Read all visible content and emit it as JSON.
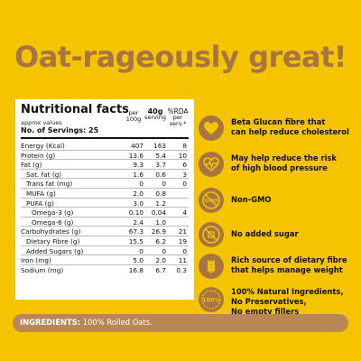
{
  "headline": "Oat-rageously great!",
  "nutrition": {
    "title": "Nutritional facts",
    "subtitle": "approx values",
    "servings": "No. of Servings: 25",
    "col1_head": [
      "per",
      "100g"
    ],
    "col2_head": [
      "40g",
      "serving"
    ],
    "col3_head": [
      "%RDA",
      "per",
      "serv.*"
    ],
    "rows": [
      {
        "label": "Energy (Kcal)",
        "per100": "407",
        "serving": "163",
        "rda": "8"
      },
      {
        "label": "Protein (g)",
        "per100": "13.6",
        "serving": "5.4",
        "rda": "10"
      },
      {
        "label": "Fat (g)",
        "per100": "9.3",
        "serving": "3.7",
        "rda": "6"
      },
      {
        "label": "Sat. fat (g)",
        "per100": "1.6",
        "serving": "0.6",
        "rda": "3"
      },
      {
        "label": "Trans fat (mg)",
        "per100": "0",
        "serving": "0",
        "rda": "0"
      },
      {
        "label": "MUFA (g)",
        "per100": "2.0",
        "serving": "0.8",
        "rda": ""
      },
      {
        "label": "PUFA (g)",
        "per100": "3.0",
        "serving": "1.2",
        "rda": ""
      },
      {
        "label": "Omega-3 (g)",
        "per100": "0.10",
        "serving": "0.04",
        "rda": "4"
      },
      {
        "label": "Omega-6 (g)",
        "per100": "2.4",
        "serving": "1.0",
        "rda": ""
      },
      {
        "label": "Carbohydrates (g)",
        "per100": "67.3",
        "serving": "26.9",
        "rda": "21"
      },
      {
        "label": "Dietary Fibre (g)",
        "per100": "15.5",
        "serving": "6.2",
        "rda": "19"
      },
      {
        "label": "Added Sugars (g)",
        "per100": "0",
        "serving": "0",
        "rda": "0"
      },
      {
        "label": "Iron (mg)",
        "per100": "5.0",
        "serving": "2.0",
        "rda": "11"
      },
      {
        "label": "Sodium (mg)",
        "per100": "16.8",
        "serving": "6.7",
        "rda": "0.3"
      }
    ]
  },
  "features": [
    {
      "icon": "heart-icon",
      "lines": [
        "Beta Glucan fibre that",
        "can help reduce cholesterol"
      ]
    },
    {
      "icon": "heartbeat-icon",
      "lines": [
        "May help reduce the risk",
        "of high blood pressure"
      ]
    },
    {
      "icon": "no-gmo-icon",
      "lines": [
        "Non-GMO"
      ],
      "badge": "GMO"
    },
    {
      "icon": "no-sugar-icon",
      "lines": [
        "No added sugar"
      ]
    },
    {
      "icon": "wheat-icon",
      "lines": [
        "Rich source of dietary fibre",
        "that helps manage weight"
      ]
    },
    {
      "icon": "natural-100-icon",
      "lines": [
        "100% Natural Ingredients,",
        "No Preservatives,",
        "No empty fillers"
      ],
      "badge": "100%"
    }
  ],
  "ingredients": {
    "label": "INGREDIENTS:",
    "value": "100% Rolled Oats."
  },
  "colors": {
    "background": "#F5C400",
    "brown": "#A87542",
    "bar": "#B98754"
  }
}
